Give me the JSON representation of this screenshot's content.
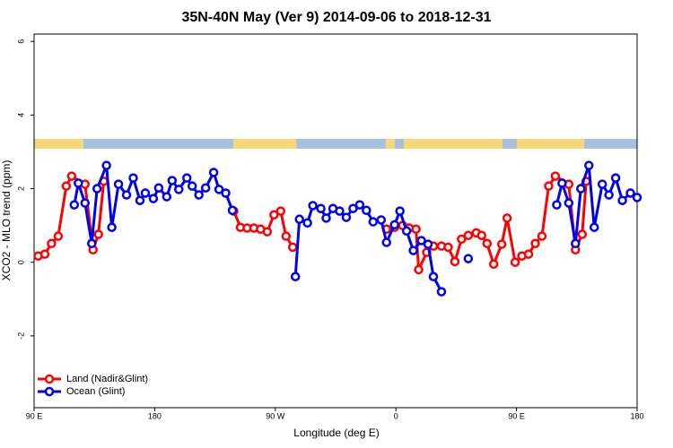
{
  "chart_data": {
    "type": "line",
    "title": "35N-40N May (Ver 9)   2014-09-06 to 2018-12-31",
    "x_label": "Longitude (deg E)",
    "y_label": "XCO2 - MLO trend (ppm)",
    "xlim": [
      90,
      540
    ],
    "xticks": [
      {
        "value": 90,
        "label": "90 E"
      },
      180,
      {
        "value": 270,
        "label": "90 W"
      },
      {
        "value": 360,
        "label": "0"
      },
      {
        "value": 450,
        "label": "90 E"
      },
      {
        "value": 540,
        "label": "180"
      }
    ],
    "ylim": [
      -3.95,
      6.2
    ],
    "yticks": [
      -2,
      0,
      2,
      4,
      6
    ],
    "legend": "bottom-left",
    "series": [
      {
        "name": "Land (Nadir&Glint)",
        "color": "#ff0000",
        "x": [
          93,
          98,
          103,
          108,
          114,
          118,
          128,
          134,
          138,
          142,
          null,
          239,
          244,
          249,
          254,
          259,
          264,
          269,
          274,
          278,
          283,
          null,
          353,
          359,
          365,
          370,
          375,
          377,
          383,
          388,
          394,
          399,
          404,
          409,
          414,
          420,
          424,
          428,
          433,
          439,
          443,
          449,
          454,
          459,
          464,
          469,
          474,
          479,
          489,
          494,
          499,
          502
        ],
        "values": [
          0.17,
          0.22,
          0.51,
          0.71,
          2.07,
          2.34,
          2.12,
          0.34,
          0.76,
          2.2,
          null,
          1.39,
          0.95,
          0.93,
          0.93,
          0.9,
          0.83,
          1.29,
          1.39,
          0.71,
          0.41,
          null,
          0.9,
          0.95,
          1.0,
          0.93,
          0.9,
          -0.2,
          0.27,
          0.44,
          0.44,
          0.41,
          0.02,
          0.63,
          0.73,
          0.8,
          0.73,
          0.51,
          -0.05,
          0.49,
          1.2,
          0.0,
          0.17,
          0.22,
          0.51,
          0.71,
          2.07,
          2.34,
          2.12,
          0.34,
          0.76,
          2.2
        ]
      },
      {
        "name": "Ocean (Glint)",
        "color": "#0000ee",
        "x": [
          120,
          123,
          128,
          133,
          137,
          144,
          148,
          153,
          159,
          164,
          169,
          173,
          179,
          183,
          189,
          193,
          198,
          204,
          208,
          213,
          218,
          224,
          228,
          233,
          238,
          null,
          285,
          288,
          294,
          298,
          304,
          308,
          313,
          318,
          323,
          328,
          333,
          338,
          343,
          349,
          353,
          359,
          363,
          368,
          373,
          379,
          384,
          388,
          394,
          null,
          414,
          null,
          480,
          484,
          489,
          494,
          498,
          504,
          508,
          514,
          519,
          524,
          529,
          535,
          540
        ],
        "values": [
          1.56,
          2.15,
          1.61,
          0.51,
          2.0,
          2.63,
          0.95,
          2.12,
          1.83,
          2.29,
          1.68,
          1.88,
          1.73,
          2.02,
          1.78,
          2.22,
          1.98,
          2.29,
          2.07,
          1.83,
          2.02,
          2.44,
          1.98,
          1.88,
          1.41,
          null,
          -0.39,
          1.17,
          1.07,
          1.54,
          1.46,
          1.2,
          1.46,
          1.39,
          1.22,
          1.46,
          1.56,
          1.41,
          1.1,
          1.15,
          0.54,
          1.02,
          1.39,
          0.85,
          0.32,
          0.59,
          0.49,
          -0.39,
          -0.8,
          null,
          0.1,
          null,
          1.56,
          2.15,
          1.61,
          0.51,
          2.0,
          2.63,
          0.95,
          2.12,
          1.83,
          2.29,
          1.68,
          1.88,
          1.76
        ]
      }
    ]
  }
}
